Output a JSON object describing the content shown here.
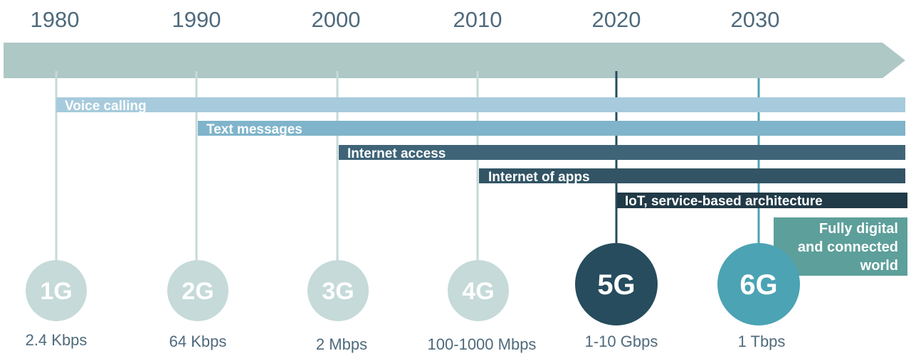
{
  "timeline": {
    "years": [
      "1980",
      "1990",
      "2000",
      "2010",
      "2020",
      "2030"
    ]
  },
  "capabilities": [
    {
      "label": "Voice calling",
      "color": "#a7cbdc"
    },
    {
      "label": "Text messages",
      "color": "#7fb4ca"
    },
    {
      "label": "Internet access",
      "color": "#3f6478"
    },
    {
      "label": "Internet of apps",
      "color": "#325465"
    },
    {
      "label": "IoT, service-based architecture",
      "color": "#213a47"
    }
  ],
  "future_box": {
    "lines": [
      "Fully digital",
      "and connected",
      "world"
    ],
    "color": "#5d9f9a"
  },
  "generations": [
    {
      "label": "1G",
      "speed": "2.4 Kbps",
      "color": "#c5dad9"
    },
    {
      "label": "2G",
      "speed": "64 Kbps",
      "color": "#c5dad9"
    },
    {
      "label": "3G",
      "speed": "2 Mbps",
      "color": "#c5dad9"
    },
    {
      "label": "4G",
      "speed": "100-1000 Mbps",
      "color": "#c5dad9"
    },
    {
      "label": "5G",
      "speed": "1-10 Gbps",
      "color": "#264c5d"
    },
    {
      "label": "6G",
      "speed": "1 Tbps",
      "color": "#4ba3b3"
    }
  ],
  "colors": {
    "arrow": "#aec8c6",
    "tick": "#c5dad9",
    "text": "#4f6a7c"
  }
}
